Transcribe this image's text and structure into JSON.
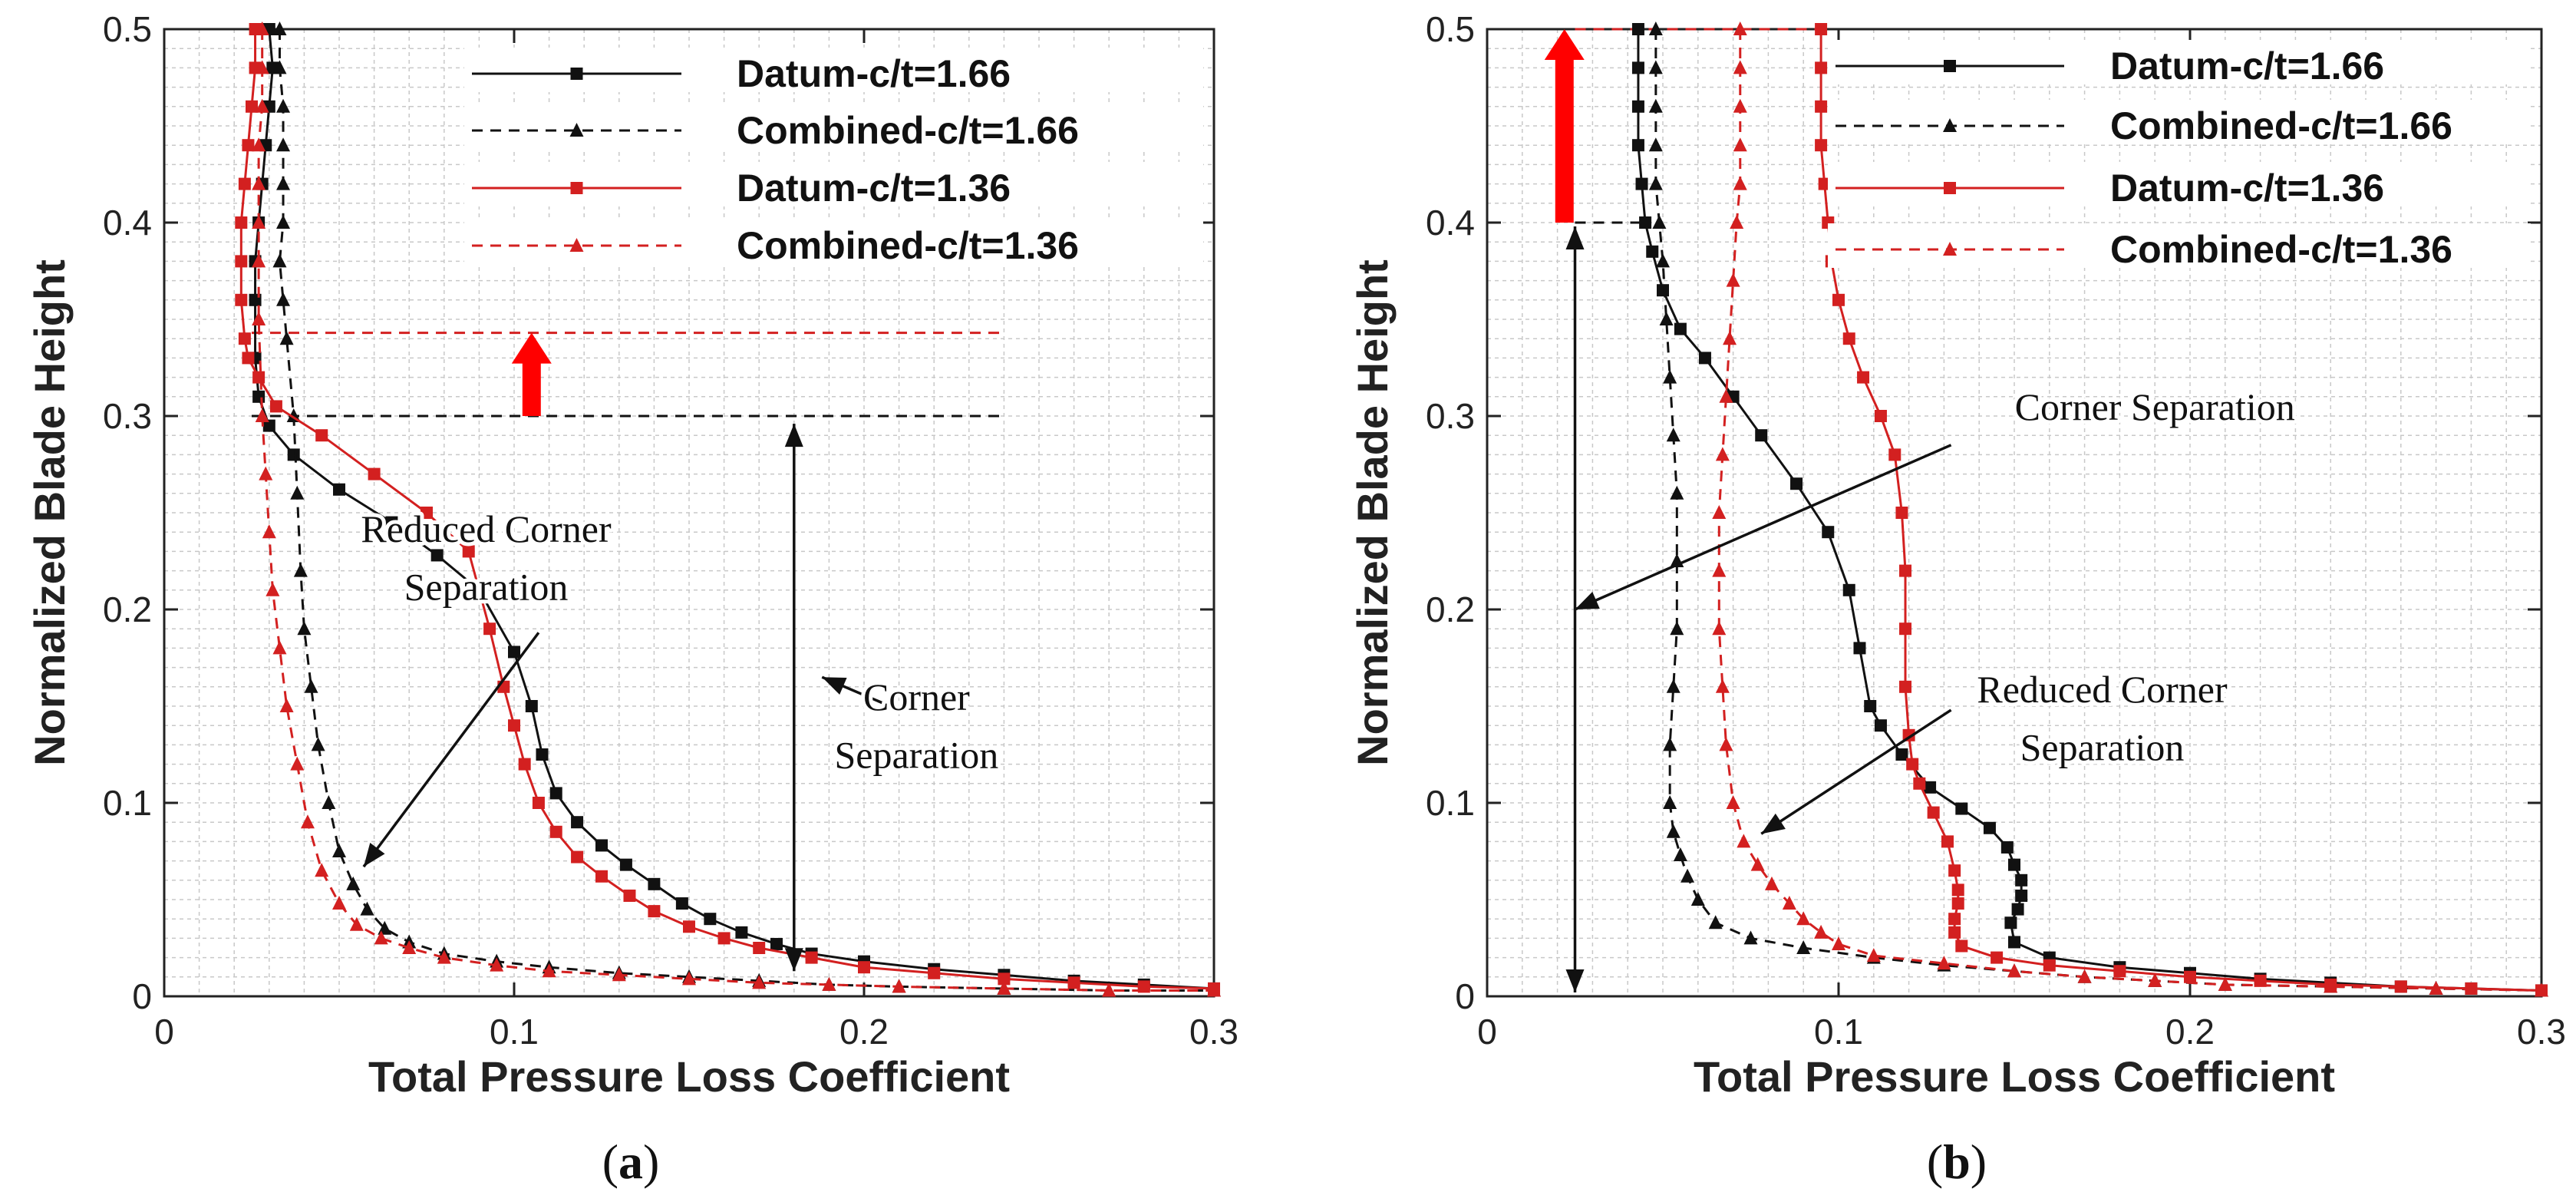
{
  "chart_data": [
    {
      "type": "line",
      "panel_label": "a",
      "xlabel": "Total Pressure Loss Coefficient",
      "ylabel": "Normalized Blade Height",
      "xlim": [
        0,
        0.3
      ],
      "ylim": [
        0,
        0.5
      ],
      "xticks": [
        0,
        0.1,
        0.2,
        0.3
      ],
      "xtick_labels": [
        "0",
        "0.1",
        "0.2",
        "0.3"
      ],
      "yticks": [
        0,
        0.1,
        0.2,
        0.3,
        0.4,
        0.5
      ],
      "ytick_labels": [
        "0",
        "0.1",
        "0.2",
        "0.3",
        "0.4",
        "0.5"
      ],
      "grid": true,
      "legend_position": "top-right",
      "series": [
        {
          "name": "Datum-c/t=1.66",
          "color": "#111111",
          "line_style": "solid",
          "marker": "square",
          "x": [
            0.03,
            0.031,
            0.03,
            0.029,
            0.028,
            0.027,
            0.026,
            0.026,
            0.026,
            0.027,
            0.03,
            0.037,
            0.05,
            0.065,
            0.078,
            0.09,
            0.1,
            0.105,
            0.108,
            0.112,
            0.118,
            0.125,
            0.132,
            0.14,
            0.148,
            0.156,
            0.165,
            0.175,
            0.185,
            0.2,
            0.22,
            0.24,
            0.26,
            0.28,
            0.3
          ],
          "y": [
            0.5,
            0.48,
            0.46,
            0.44,
            0.42,
            0.4,
            0.38,
            0.36,
            0.33,
            0.31,
            0.295,
            0.28,
            0.262,
            0.245,
            0.228,
            0.21,
            0.178,
            0.15,
            0.125,
            0.105,
            0.09,
            0.078,
            0.068,
            0.058,
            0.048,
            0.04,
            0.033,
            0.027,
            0.022,
            0.018,
            0.014,
            0.011,
            0.008,
            0.006,
            0.004
          ]
        },
        {
          "name": "Combined-c/t=1.66",
          "color": "#111111",
          "line_style": "dashed",
          "marker": "triangle",
          "x": [
            0.033,
            0.033,
            0.034,
            0.034,
            0.034,
            0.034,
            0.033,
            0.034,
            0.035,
            0.037,
            0.038,
            0.039,
            0.04,
            0.042,
            0.044,
            0.047,
            0.05,
            0.054,
            0.058,
            0.063,
            0.07,
            0.08,
            0.095,
            0.11,
            0.13,
            0.15,
            0.17,
            0.19,
            0.21,
            0.24,
            0.27,
            0.3
          ],
          "y": [
            0.5,
            0.48,
            0.46,
            0.44,
            0.42,
            0.4,
            0.38,
            0.36,
            0.34,
            0.3,
            0.26,
            0.22,
            0.19,
            0.16,
            0.13,
            0.1,
            0.075,
            0.058,
            0.045,
            0.035,
            0.028,
            0.022,
            0.018,
            0.015,
            0.012,
            0.01,
            0.008,
            0.006,
            0.005,
            0.004,
            0.003,
            0.003
          ]
        },
        {
          "name": "Datum-c/t=1.36",
          "color": "#d32020",
          "line_style": "solid",
          "marker": "square",
          "x": [
            0.026,
            0.026,
            0.025,
            0.024,
            0.023,
            0.022,
            0.022,
            0.022,
            0.023,
            0.024,
            0.027,
            0.032,
            0.045,
            0.06,
            0.075,
            0.087,
            0.093,
            0.097,
            0.1,
            0.103,
            0.107,
            0.112,
            0.118,
            0.125,
            0.133,
            0.14,
            0.15,
            0.16,
            0.17,
            0.185,
            0.2,
            0.22,
            0.24,
            0.26,
            0.28,
            0.3
          ],
          "y": [
            0.5,
            0.48,
            0.46,
            0.44,
            0.42,
            0.4,
            0.38,
            0.36,
            0.34,
            0.33,
            0.32,
            0.305,
            0.29,
            0.27,
            0.25,
            0.23,
            0.19,
            0.16,
            0.14,
            0.12,
            0.1,
            0.085,
            0.072,
            0.062,
            0.052,
            0.044,
            0.036,
            0.03,
            0.025,
            0.02,
            0.015,
            0.012,
            0.009,
            0.007,
            0.005,
            0.004
          ]
        },
        {
          "name": "Combined-c/t=1.36",
          "color": "#d32020",
          "line_style": "dashed",
          "marker": "triangle",
          "x": [
            0.028,
            0.028,
            0.028,
            0.027,
            0.027,
            0.027,
            0.027,
            0.027,
            0.028,
            0.029,
            0.03,
            0.031,
            0.033,
            0.035,
            0.038,
            0.041,
            0.045,
            0.05,
            0.055,
            0.062,
            0.07,
            0.08,
            0.095,
            0.11,
            0.13,
            0.15,
            0.17,
            0.19,
            0.21,
            0.24,
            0.27,
            0.3
          ],
          "y": [
            0.5,
            0.48,
            0.46,
            0.44,
            0.42,
            0.4,
            0.38,
            0.35,
            0.3,
            0.27,
            0.24,
            0.21,
            0.18,
            0.15,
            0.12,
            0.09,
            0.065,
            0.048,
            0.037,
            0.03,
            0.025,
            0.02,
            0.016,
            0.013,
            0.011,
            0.009,
            0.007,
            0.006,
            0.005,
            0.004,
            0.003,
            0.003
          ]
        }
      ],
      "reference_lines": [
        {
          "y": 0.3,
          "color": "#111111",
          "style": "dashed",
          "x_range": [
            0.025,
            0.24
          ]
        },
        {
          "y": 0.343,
          "color": "#d32020",
          "style": "dashed",
          "x_range": [
            0.025,
            0.24
          ]
        }
      ],
      "block_arrows": [
        {
          "x": 0.105,
          "y_from": 0.3,
          "y_to": 0.343,
          "color": "#ff0000"
        }
      ],
      "annotations": [
        {
          "text": "Reduced Corner",
          "x": 0.092,
          "y": 0.235
        },
        {
          "text": "Separation",
          "x": 0.092,
          "y": 0.205
        },
        {
          "text": "Corner",
          "x": 0.215,
          "y": 0.148
        },
        {
          "text": "Separation",
          "x": 0.215,
          "y": 0.118
        }
      ],
      "arrows": [
        {
          "from": [
            0.107,
            0.188
          ],
          "to": [
            0.057,
            0.067
          ],
          "heads": "end"
        },
        {
          "from": [
            0.18,
            0.296
          ],
          "to": [
            0.18,
            0.013
          ],
          "heads": "both"
        },
        {
          "from": [
            0.21,
            0.148
          ],
          "to": [
            0.188,
            0.165
          ],
          "heads": "end"
        }
      ]
    },
    {
      "type": "line",
      "panel_label": "b",
      "xlabel": "Total Pressure Loss Coefficient",
      "ylabel": "Normalized Blade Height",
      "xlim": [
        0,
        0.3
      ],
      "ylim": [
        0,
        0.5
      ],
      "xticks": [
        0,
        0.1,
        0.2,
        0.3
      ],
      "xtick_labels": [
        "0",
        "0.1",
        "0.2",
        "0.3"
      ],
      "yticks": [
        0,
        0.1,
        0.2,
        0.3,
        0.4,
        0.5
      ],
      "ytick_labels": [
        "0",
        "0.1",
        "0.2",
        "0.3",
        "0.4",
        "0.5"
      ],
      "grid": true,
      "legend_position": "top-right",
      "series": [
        {
          "name": "Datum-c/t=1.66",
          "color": "#111111",
          "line_style": "solid",
          "marker": "square",
          "x": [
            0.043,
            0.043,
            0.043,
            0.043,
            0.044,
            0.045,
            0.047,
            0.05,
            0.055,
            0.062,
            0.07,
            0.078,
            0.088,
            0.097,
            0.103,
            0.106,
            0.109,
            0.112,
            0.118,
            0.126,
            0.135,
            0.143,
            0.148,
            0.15,
            0.152,
            0.152,
            0.151,
            0.149,
            0.15,
            0.16,
            0.18,
            0.2,
            0.22,
            0.24,
            0.26,
            0.28,
            0.3
          ],
          "y": [
            0.5,
            0.48,
            0.46,
            0.44,
            0.42,
            0.4,
            0.385,
            0.365,
            0.345,
            0.33,
            0.31,
            0.29,
            0.265,
            0.24,
            0.21,
            0.18,
            0.15,
            0.14,
            0.125,
            0.108,
            0.097,
            0.087,
            0.077,
            0.068,
            0.06,
            0.052,
            0.045,
            0.038,
            0.028,
            0.02,
            0.015,
            0.012,
            0.009,
            0.007,
            0.005,
            0.004,
            0.003
          ]
        },
        {
          "name": "Combined-c/t=1.66",
          "color": "#111111",
          "line_style": "dashed",
          "marker": "triangle",
          "x": [
            0.048,
            0.048,
            0.048,
            0.048,
            0.048,
            0.049,
            0.05,
            0.051,
            0.052,
            0.053,
            0.054,
            0.054,
            0.054,
            0.053,
            0.052,
            0.052,
            0.053,
            0.055,
            0.057,
            0.06,
            0.065,
            0.075,
            0.09,
            0.11,
            0.13,
            0.15,
            0.17,
            0.19,
            0.21,
            0.24,
            0.27,
            0.3
          ],
          "y": [
            0.5,
            0.48,
            0.46,
            0.44,
            0.42,
            0.4,
            0.38,
            0.35,
            0.32,
            0.29,
            0.26,
            0.225,
            0.19,
            0.16,
            0.13,
            0.1,
            0.085,
            0.073,
            0.062,
            0.05,
            0.038,
            0.03,
            0.025,
            0.02,
            0.016,
            0.013,
            0.01,
            0.008,
            0.006,
            0.005,
            0.004,
            0.003
          ]
        },
        {
          "name": "Datum-c/t=1.36",
          "color": "#d32020",
          "line_style": "solid",
          "marker": "square",
          "x": [
            0.095,
            0.095,
            0.095,
            0.095,
            0.096,
            0.097,
            0.098,
            0.1,
            0.103,
            0.107,
            0.112,
            0.116,
            0.118,
            0.119,
            0.119,
            0.119,
            0.12,
            0.121,
            0.123,
            0.127,
            0.131,
            0.133,
            0.134,
            0.134,
            0.133,
            0.133,
            0.135,
            0.145,
            0.16,
            0.18,
            0.2,
            0.22,
            0.24,
            0.26,
            0.28,
            0.3
          ],
          "y": [
            0.5,
            0.48,
            0.46,
            0.44,
            0.42,
            0.4,
            0.38,
            0.36,
            0.34,
            0.32,
            0.3,
            0.28,
            0.25,
            0.22,
            0.19,
            0.16,
            0.135,
            0.12,
            0.11,
            0.095,
            0.08,
            0.065,
            0.055,
            0.048,
            0.04,
            0.033,
            0.026,
            0.02,
            0.016,
            0.013,
            0.01,
            0.008,
            0.006,
            0.005,
            0.004,
            0.003
          ]
        },
        {
          "name": "Combined-c/t=1.36",
          "color": "#d32020",
          "line_style": "dashed",
          "marker": "triangle",
          "x": [
            0.072,
            0.072,
            0.072,
            0.072,
            0.072,
            0.071,
            0.07,
            0.069,
            0.068,
            0.067,
            0.066,
            0.066,
            0.066,
            0.067,
            0.068,
            0.07,
            0.073,
            0.077,
            0.081,
            0.086,
            0.09,
            0.095,
            0.1,
            0.11,
            0.13,
            0.15,
            0.17,
            0.19,
            0.21,
            0.24,
            0.27,
            0.3
          ],
          "y": [
            0.5,
            0.48,
            0.46,
            0.44,
            0.42,
            0.4,
            0.37,
            0.34,
            0.31,
            0.28,
            0.25,
            0.22,
            0.19,
            0.16,
            0.13,
            0.1,
            0.08,
            0.068,
            0.058,
            0.048,
            0.04,
            0.033,
            0.027,
            0.021,
            0.017,
            0.013,
            0.01,
            0.008,
            0.006,
            0.005,
            0.004,
            0.003
          ]
        }
      ],
      "reference_lines": [
        {
          "y": 0.4,
          "color": "#111111",
          "style": "dashed",
          "x_range": [
            0.025,
            0.045
          ]
        },
        {
          "y": 0.5,
          "color": "#d32020",
          "style": "dashed",
          "x_range": [
            0.025,
            0.095
          ]
        }
      ],
      "block_arrows": [
        {
          "x": 0.022,
          "y_from": 0.4,
          "y_to": 0.5,
          "color": "#ff0000"
        }
      ],
      "annotations": [
        {
          "text": "Corner Separation",
          "x": 0.19,
          "y": 0.298
        },
        {
          "text": "Reduced Corner",
          "x": 0.175,
          "y": 0.152
        },
        {
          "text": "Separation",
          "x": 0.175,
          "y": 0.122
        }
      ],
      "arrows": [
        {
          "from": [
            0.025,
            0.398
          ],
          "to": [
            0.025,
            0.002
          ],
          "heads": "both"
        },
        {
          "from": [
            0.132,
            0.285
          ],
          "to": [
            0.025,
            0.2
          ],
          "heads": "end"
        },
        {
          "from": [
            0.132,
            0.148
          ],
          "to": [
            0.078,
            0.084
          ],
          "heads": "end"
        }
      ]
    }
  ]
}
